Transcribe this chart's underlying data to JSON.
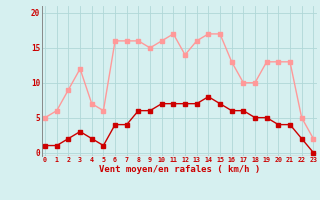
{
  "hours": [
    0,
    1,
    2,
    3,
    4,
    5,
    6,
    7,
    8,
    9,
    10,
    11,
    12,
    13,
    14,
    15,
    16,
    17,
    18,
    19,
    20,
    21,
    22,
    23
  ],
  "rafales": [
    5,
    6,
    9,
    12,
    7,
    6,
    16,
    16,
    16,
    15,
    16,
    17,
    14,
    16,
    17,
    17,
    13,
    10,
    10,
    13,
    13,
    13,
    5,
    2
  ],
  "moyen": [
    1,
    1,
    2,
    3,
    2,
    1,
    4,
    4,
    6,
    6,
    7,
    7,
    7,
    7,
    8,
    7,
    6,
    6,
    5,
    5,
    4,
    4,
    2,
    0
  ],
  "bg_color": "#d6f0f0",
  "grid_color": "#b0d8d8",
  "rafales_color": "#ff9999",
  "moyen_color": "#cc0000",
  "xlabel": "Vent moyen/en rafales ( km/h )",
  "xlabel_color": "#cc0000",
  "ylabel_ticks": [
    0,
    5,
    10,
    15,
    20
  ],
  "ylim": [
    -0.5,
    21
  ],
  "xlim": [
    -0.3,
    23.3
  ],
  "tick_color": "#cc0000",
  "marker_size": 2.2,
  "line_width": 1.0
}
